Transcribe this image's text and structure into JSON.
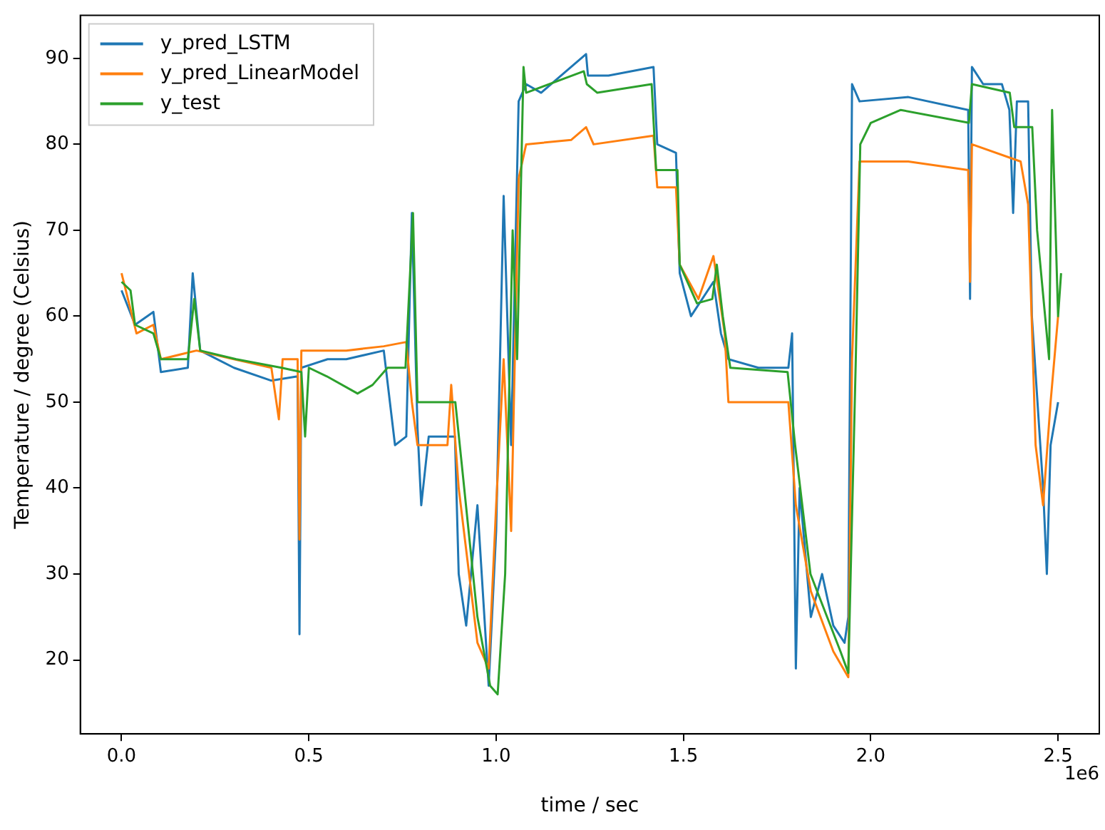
{
  "chart_data": {
    "type": "line",
    "xlabel": "time / sec",
    "ylabel": "Temperature / degree (Celsius)",
    "annotations": [
      "1e6"
    ],
    "legend": "top left",
    "grid": false,
    "xlim": [
      -0.11,
      2.61
    ],
    "ylim": [
      11.4,
      95
    ],
    "xticks": [
      {
        "value": 0,
        "label": "0.0"
      },
      {
        "value": 0.5,
        "label": "0.5"
      },
      {
        "value": 1,
        "label": "1.0"
      },
      {
        "value": 1.5,
        "label": "1.5"
      },
      {
        "value": 2,
        "label": "2.0"
      },
      {
        "value": 2.5,
        "label": "2.5"
      }
    ],
    "yticks": [
      20,
      30,
      40,
      50,
      60,
      70,
      80,
      90
    ],
    "series": [
      {
        "name": "y_pred_LSTM",
        "color": "#1f77b4",
        "x": [
          0,
          0.036,
          0.085,
          0.105,
          0.177,
          0.19,
          0.21,
          0.3,
          0.4,
          0.47,
          0.475,
          0.48,
          0.55,
          0.6,
          0.7,
          0.73,
          0.76,
          0.775,
          0.79,
          0.8,
          0.82,
          0.89,
          0.9,
          0.92,
          0.95,
          0.98,
          1.0,
          1.02,
          1.04,
          1.06,
          1.08,
          1.12,
          1.2,
          1.24,
          1.245,
          1.3,
          1.42,
          1.43,
          1.48,
          1.49,
          1.52,
          1.58,
          1.6,
          1.62,
          1.7,
          1.78,
          1.79,
          1.8,
          1.81,
          1.84,
          1.87,
          1.9,
          1.93,
          1.94,
          1.95,
          1.97,
          2.1,
          2.26,
          2.265,
          2.27,
          2.3,
          2.35,
          2.37,
          2.38,
          2.39,
          2.42,
          2.43,
          2.46,
          2.47,
          2.48,
          2.5
        ],
        "values": [
          63,
          59,
          60.5,
          53.5,
          54,
          65,
          56,
          54,
          52.5,
          53,
          23,
          54,
          55,
          55,
          56,
          45,
          46,
          72,
          47,
          38,
          46,
          46,
          30,
          24,
          38,
          17,
          35,
          74,
          45,
          85,
          87,
          86,
          89,
          90.5,
          88,
          88,
          89,
          80,
          79,
          65,
          60,
          64,
          58,
          55,
          54,
          54,
          58,
          19,
          40,
          25,
          30,
          24,
          22,
          25,
          87,
          85,
          85.5,
          84,
          62,
          89,
          87,
          87,
          84,
          72,
          85,
          85,
          60,
          40,
          30,
          45,
          50
        ]
      },
      {
        "name": "y_pred_LinearModel",
        "color": "#ff7f0e",
        "x": [
          0,
          0.04,
          0.085,
          0.105,
          0.2,
          0.3,
          0.4,
          0.42,
          0.43,
          0.47,
          0.475,
          0.48,
          0.6,
          0.7,
          0.76,
          0.775,
          0.79,
          0.87,
          0.88,
          0.9,
          0.95,
          0.98,
          1.0,
          1.02,
          1.04,
          1.06,
          1.08,
          1.2,
          1.24,
          1.26,
          1.42,
          1.43,
          1.48,
          1.49,
          1.54,
          1.58,
          1.61,
          1.62,
          1.78,
          1.8,
          1.84,
          1.9,
          1.94,
          1.95,
          1.97,
          2.1,
          2.26,
          2.265,
          2.27,
          2.4,
          2.42,
          2.44,
          2.46,
          2.48,
          2.5
        ],
        "values": [
          65,
          58,
          59,
          55,
          56,
          55,
          54,
          48,
          55,
          55,
          34,
          56,
          56,
          56.5,
          57,
          50,
          45,
          45,
          52,
          40,
          22,
          19,
          38,
          55,
          35,
          76,
          80,
          80.5,
          82,
          80,
          81,
          75,
          75,
          66,
          62,
          67,
          58,
          50,
          50,
          38,
          28,
          21,
          18,
          55,
          78,
          78,
          77,
          64,
          80,
          78,
          73,
          45,
          38,
          50,
          60
        ]
      },
      {
        "name": "y_test",
        "color": "#2ca02c",
        "x": [
          0,
          0.024,
          0.036,
          0.085,
          0.105,
          0.177,
          0.194,
          0.21,
          0.306,
          0.427,
          0.48,
          0.49,
          0.5,
          0.548,
          0.63,
          0.67,
          0.71,
          0.758,
          0.778,
          0.79,
          0.891,
          0.91,
          0.95,
          0.984,
          1.004,
          1.024,
          1.044,
          1.056,
          1.073,
          1.08,
          1.234,
          1.242,
          1.27,
          1.415,
          1.427,
          1.484,
          1.49,
          1.536,
          1.577,
          1.589,
          1.605,
          1.625,
          1.778,
          1.798,
          1.839,
          1.919,
          1.94,
          1.96,
          1.972,
          2.0,
          2.08,
          2.262,
          2.27,
          2.371,
          2.383,
          2.431,
          2.444,
          2.476,
          2.484,
          2.5,
          2.508
        ],
        "values": [
          64,
          63,
          59,
          58,
          55,
          55,
          62,
          56,
          55,
          54,
          53.5,
          46,
          54,
          53,
          51,
          52,
          54,
          54,
          72,
          50,
          50,
          42,
          25,
          17,
          16,
          30,
          70,
          55,
          89,
          86,
          88.5,
          87,
          86,
          87,
          77,
          77,
          66,
          61.5,
          62,
          66,
          60,
          54,
          53.5,
          45,
          30,
          21,
          18.5,
          55,
          80,
          82.5,
          84,
          82.5,
          87,
          86,
          82,
          82,
          70,
          55,
          84,
          60,
          65
        ]
      }
    ]
  }
}
